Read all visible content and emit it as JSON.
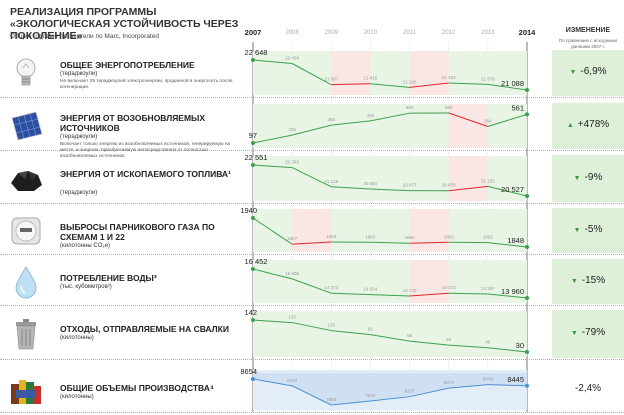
{
  "header": {
    "title": "РЕАЛИЗАЦИЯ ПРОГРАММЫ «ЭКОЛОГИЧЕСКАЯ УСТОЙЧИВОСТЬ ЧЕРЕЗ ПОКОЛЕНИЕ»",
    "subtitle": "Общие годовые показатели по Marc, Incorporated",
    "change_title": "ИЗМЕНЕНИЕ",
    "change_subtitle": "По сравнению с исходными данными 2007 г."
  },
  "years": [
    "2007",
    "2008",
    "2009",
    "2010",
    "2011",
    "2012",
    "2013",
    "2014"
  ],
  "colors": {
    "green": "#3aa14a",
    "red": "#d9262d",
    "blue": "#4a8fd4",
    "green_band": "#e8f5e4",
    "red_band": "#fbe6e6",
    "blue_band": "#e3edf8",
    "change_bg": "#dff0d8"
  },
  "chart_data": [
    {
      "type": "line",
      "icon": "lightbulb-icon",
      "label": "ОБЩЕЕ ЭНЕРГОПОТРЕБЛЕНИЕ",
      "unit": "(тераджоули)",
      "note": "Не включает 29 тераджоулей электроэнергии, проданной в энергосеть после когенерации.",
      "x": [
        2007,
        2008,
        2009,
        2010,
        2011,
        2012,
        2013,
        2014
      ],
      "values": [
        22648,
        22466,
        21367,
        21415,
        21226,
        21453,
        21379,
        21088
      ],
      "labels": [
        "22 648",
        "22 466",
        "21 367",
        "21 415",
        "21 226",
        "21 453",
        "21 379",
        "21 088"
      ],
      "change": "-6,9%",
      "direction": "down"
    },
    {
      "type": "line",
      "icon": "solar-panel-icon",
      "label": "ЭНЕРГИЯ ОТ ВОЗОБНОВЛЯЕМЫХ ИСТОЧНИКОВ",
      "unit": "(тераджоули)",
      "note": "Включает только энергию из возобновляемых источников, генерируемую на месте, и энергию, приобретаемую непосредственно от полностью возобновляемых источников.",
      "x": [
        2007,
        2008,
        2009,
        2010,
        2011,
        2012,
        2013,
        2014
      ],
      "values": [
        97,
        225,
        386,
        456,
        580,
        583,
        364,
        561
      ],
      "labels": [
        "97",
        "225",
        "386",
        "456",
        "580",
        "583",
        "364",
        "561"
      ],
      "change": "+478%",
      "direction": "up"
    },
    {
      "type": "line",
      "icon": "coal-icon",
      "label": "ЭНЕРГИЯ ОТ ИСКОПАЕМОГО ТОПЛИВА¹",
      "unit": "(тераджоули)",
      "x": [
        2007,
        2008,
        2009,
        2010,
        2011,
        2012,
        2013,
        2014
      ],
      "values": [
        22551,
        22382,
        21128,
        20981,
        20877,
        20870,
        21155,
        20527
      ],
      "labels": [
        "22 551",
        "22 382",
        "21 128",
        "20 981",
        "20 877",
        "20 870",
        "21 155",
        "20 527"
      ],
      "change": "-9%",
      "direction": "down"
    },
    {
      "type": "line",
      "icon": "meter-icon",
      "label": "ВЫБРОСЫ ПАРНИКОВОГО ГАЗА ПО СХЕМАМ 1 И 22",
      "unit": "(килотонны CO₂е)",
      "x": [
        2007,
        2008,
        2009,
        2010,
        2011,
        2012,
        2013,
        2014
      ],
      "values": [
        1940,
        1857,
        1864,
        1863,
        1860,
        1863,
        1862,
        1848
      ],
      "labels": [
        "1940",
        "1857",
        "1864",
        "1863",
        "1860",
        "1863",
        "1862",
        "1848"
      ],
      "change": "-5%",
      "direction": "down"
    },
    {
      "type": "line",
      "icon": "water-drop-icon",
      "label": "ПОТРЕБЛЕНИЕ ВОДЫ³",
      "unit": "(тыс. кубометров³)",
      "x": [
        2007,
        2008,
        2009,
        2010,
        2011,
        2012,
        2013,
        2014
      ],
      "values": [
        16452,
        15605,
        14373,
        14254,
        14133,
        14373,
        14307,
        13960
      ],
      "labels": [
        "16 452",
        "15 605",
        "14 373",
        "14 254",
        "14 133",
        "14 373",
        "14 307",
        "13 960"
      ],
      "change": "-15%",
      "direction": "down"
    },
    {
      "type": "line",
      "icon": "trash-can-icon",
      "label": "ОТХОДЫ, ОТПРАВЛЯЕМЫЕ НА СВАЛКИ",
      "unit": "(килотонны)",
      "x": [
        2007,
        2008,
        2009,
        2010,
        2011,
        2012,
        2013,
        2014
      ],
      "values": [
        142,
        133,
        105,
        91,
        68,
        54,
        45,
        30
      ],
      "labels": [
        "142",
        "133",
        "105",
        "91",
        "68",
        "54",
        "45",
        "30"
      ],
      "change": "-79%",
      "direction": "down"
    },
    {
      "type": "area",
      "icon": "products-icon",
      "label": "ОБЩИЕ ОБЪЕМЫ ПРОИЗВОДСТВА⁴",
      "unit": "(килотонны)",
      "x": [
        2007,
        2008,
        2009,
        2010,
        2011,
        2012,
        2013,
        2014
      ],
      "values": [
        8654,
        8443,
        7850,
        7975,
        8107,
        8373,
        8479,
        8445
      ],
      "labels": [
        "8654",
        "8443",
        "7850",
        "7975",
        "8107",
        "8373",
        "8479",
        "8445"
      ],
      "change": "-2,4%",
      "direction": "none"
    }
  ]
}
